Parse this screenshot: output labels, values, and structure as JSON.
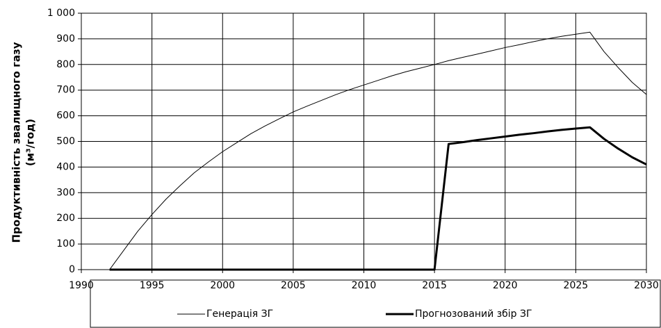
{
  "chart_data": {
    "type": "line",
    "ylabel": [
      "Продуктивність звалищного газу",
      "(м³/год)"
    ],
    "x": [
      1992,
      1993,
      1994,
      1995,
      1996,
      1997,
      1998,
      1999,
      2000,
      2001,
      2002,
      2003,
      2004,
      2005,
      2006,
      2007,
      2008,
      2009,
      2010,
      2011,
      2012,
      2013,
      2014,
      2015,
      2016,
      2017,
      2018,
      2019,
      2020,
      2021,
      2022,
      2023,
      2024,
      2025,
      2026,
      2027,
      2028,
      2029,
      2030
    ],
    "series": [
      {
        "name": "Генерація ЗГ",
        "color": "#000000",
        "width": 1,
        "values": [
          0,
          75,
          150,
          215,
          275,
          328,
          378,
          420,
          460,
          495,
          530,
          560,
          588,
          615,
          638,
          660,
          682,
          702,
          720,
          738,
          756,
          772,
          786,
          800,
          815,
          828,
          840,
          853,
          866,
          877,
          889,
          900,
          910,
          918,
          926,
          850,
          788,
          730,
          683
        ]
      },
      {
        "name": "Прогнозований збір ЗГ",
        "color": "#000000",
        "width": 3,
        "values": [
          0,
          0,
          0,
          0,
          0,
          0,
          0,
          0,
          0,
          0,
          0,
          0,
          0,
          0,
          0,
          0,
          0,
          0,
          0,
          0,
          0,
          0,
          0,
          0,
          490,
          497,
          505,
          512,
          519,
          526,
          532,
          539,
          545,
          550,
          555,
          510,
          472,
          438,
          410
        ]
      }
    ],
    "xlim": [
      1990,
      2030
    ],
    "xticks": [
      1990,
      1995,
      2000,
      2005,
      2010,
      2015,
      2020,
      2025,
      2030
    ],
    "ylim": [
      0,
      1000
    ],
    "yticks": [
      0,
      100,
      200,
      300,
      400,
      500,
      600,
      700,
      800,
      900,
      {
        "value": 1000,
        "label": "1 000"
      }
    ],
    "grid": true,
    "legend": "bottom"
  }
}
